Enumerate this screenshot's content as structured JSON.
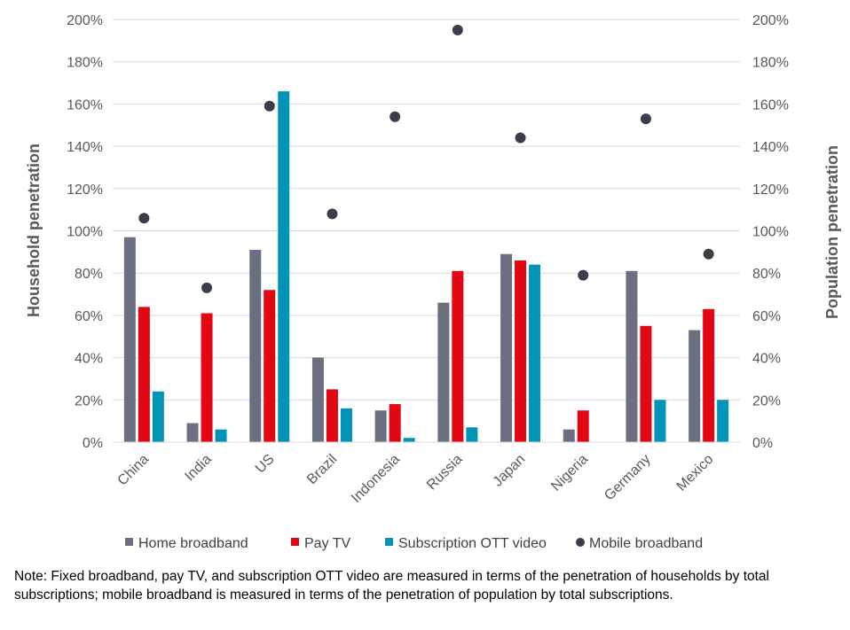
{
  "chart_data": {
    "type": "bar",
    "categories": [
      "China",
      "India",
      "US",
      "Brazil",
      "Indonesia",
      "Russia",
      "Japan",
      "Nigeria",
      "Germany",
      "Mexico"
    ],
    "series": [
      {
        "name": "Home broadband",
        "axis": "left",
        "kind": "bar",
        "color": "#6B7080",
        "values": [
          97,
          9,
          91,
          40,
          15,
          66,
          89,
          6,
          81,
          53
        ]
      },
      {
        "name": "Pay TV",
        "axis": "left",
        "kind": "bar",
        "color": "#E30613",
        "values": [
          64,
          61,
          72,
          25,
          18,
          81,
          86,
          15,
          55,
          63
        ]
      },
      {
        "name": "Subscription OTT video",
        "axis": "left",
        "kind": "bar",
        "color": "#0095B6",
        "values": [
          24,
          6,
          166,
          16,
          2,
          7,
          84,
          null,
          20,
          20
        ]
      },
      {
        "name": "Mobile broadband",
        "axis": "right",
        "kind": "scatter",
        "color": "#3A3D4A",
        "values": [
          106,
          73,
          159,
          108,
          154,
          195,
          144,
          79,
          153,
          89
        ]
      }
    ],
    "ylabel_left": "Household penetration",
    "ylabel_right": "Population penetration",
    "ylim": [
      0,
      200
    ],
    "y_ticks": [
      "0%",
      "20%",
      "40%",
      "60%",
      "80%",
      "100%",
      "120%",
      "140%",
      "160%",
      "180%",
      "200%"
    ],
    "legend_position": "bottom"
  },
  "note": "Note: Fixed broadband, pay TV, and subscription OTT video are measured in terms of the penetration of households by total subscriptions; mobile broadband is measured in terms of the penetration of population by total subscriptions."
}
